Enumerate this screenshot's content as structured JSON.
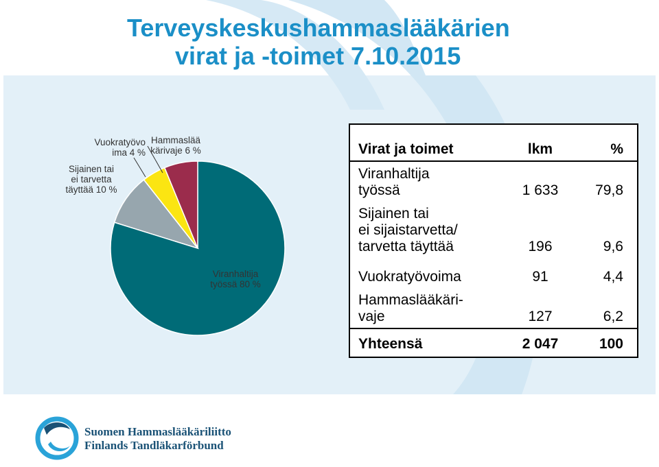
{
  "title": {
    "line1": "Terveyskeskushammaslääkärien",
    "line2": "virat ja -toimet 7.10.2015"
  },
  "chart_data": {
    "type": "pie",
    "slices": [
      {
        "label_lines": [
          "Viranhaltija",
          "työssä 80 %"
        ],
        "value": 79.8,
        "color": "#006b77"
      },
      {
        "label_lines": [
          "Sijainen tai",
          "ei tarvetta",
          "täyttää 10 %"
        ],
        "value": 9.6,
        "color": "#97a6ae"
      },
      {
        "label_lines": [
          "Vuokratyövo",
          "ima 4 %"
        ],
        "value": 4.4,
        "color": "#fbe512"
      },
      {
        "label_lines": [
          "Hammaslää",
          "kärivaje 6 %"
        ],
        "value": 6.2,
        "color": "#9b2c4c"
      }
    ]
  },
  "table": {
    "header": {
      "c1": "Virat ja toimet",
      "c2": "lkm",
      "c3": "%"
    },
    "rows": [
      {
        "c1": [
          "Viranhaltija",
          "työssä"
        ],
        "c2": "1 633",
        "c3": "79,8"
      },
      {
        "c1": [
          "Sijainen tai",
          "ei sijaistarvetta/",
          "tarvetta täyttää"
        ],
        "c2": "196",
        "c3": "9,6"
      },
      {
        "c1": [
          "Vuokratyövoima"
        ],
        "c2": "91",
        "c3": "4,4"
      },
      {
        "c1": [
          "Hammaslääkäri-",
          "vaje"
        ],
        "c2": "127",
        "c3": "6,2"
      }
    ],
    "total": {
      "c1": "Yhteensä",
      "c2": "2 047",
      "c3": "100"
    }
  },
  "logo": {
    "line1": "Suomen Hammaslääkäriliitto",
    "line2": "Finlands Tandläkarförbund"
  },
  "colors": {
    "title": "#1b8fc7",
    "background_swoosh": "#dceef8",
    "background_band": "#e8f3fa"
  }
}
